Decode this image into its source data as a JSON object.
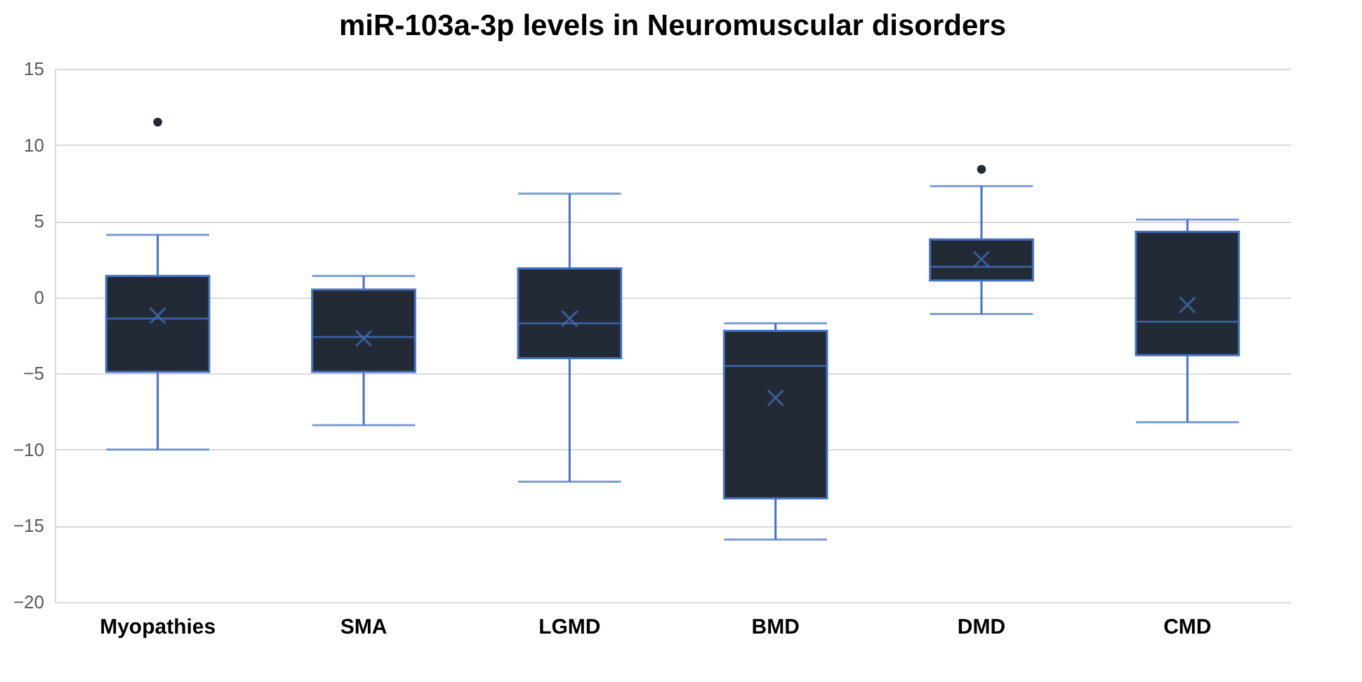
{
  "chart_data": {
    "type": "box",
    "title": "miR-103a-3p levels in Neuromuscular disorders",
    "categories": [
      "Myopathies",
      "SMA",
      "LGMD",
      "BMD",
      "DMD",
      "CMD"
    ],
    "boxes": [
      {
        "low": -10,
        "q1": -4.9,
        "median": -1.4,
        "q3": 1.4,
        "high": 4.1,
        "mean": -1.2,
        "outliers": [
          11.5
        ]
      },
      {
        "low": -8.4,
        "q1": -4.9,
        "median": -2.6,
        "q3": 0.5,
        "high": 1.4,
        "mean": -2.7
      },
      {
        "low": -12.1,
        "q1": -4,
        "median": -1.7,
        "q3": 1.9,
        "high": 6.8,
        "mean": -1.4
      },
      {
        "low": -15.9,
        "q1": -13.2,
        "median": -4.5,
        "q3": -2.2,
        "high": -1.7,
        "mean": -6.6
      },
      {
        "low": -1.1,
        "q1": 1.1,
        "median": 2,
        "q3": 3.8,
        "high": 7.3,
        "mean": 2.5,
        "outliers": [
          8.4
        ]
      },
      {
        "low": -8.2,
        "q1": -3.8,
        "median": -1.6,
        "q3": 4.3,
        "high": 5.1,
        "mean": -0.5
      }
    ],
    "color": "#222a35",
    "ylim": [
      -20,
      15
    ],
    "yticks": [
      -20,
      -15,
      -10,
      -5,
      0,
      5,
      10,
      15
    ],
    "grid": "y"
  }
}
